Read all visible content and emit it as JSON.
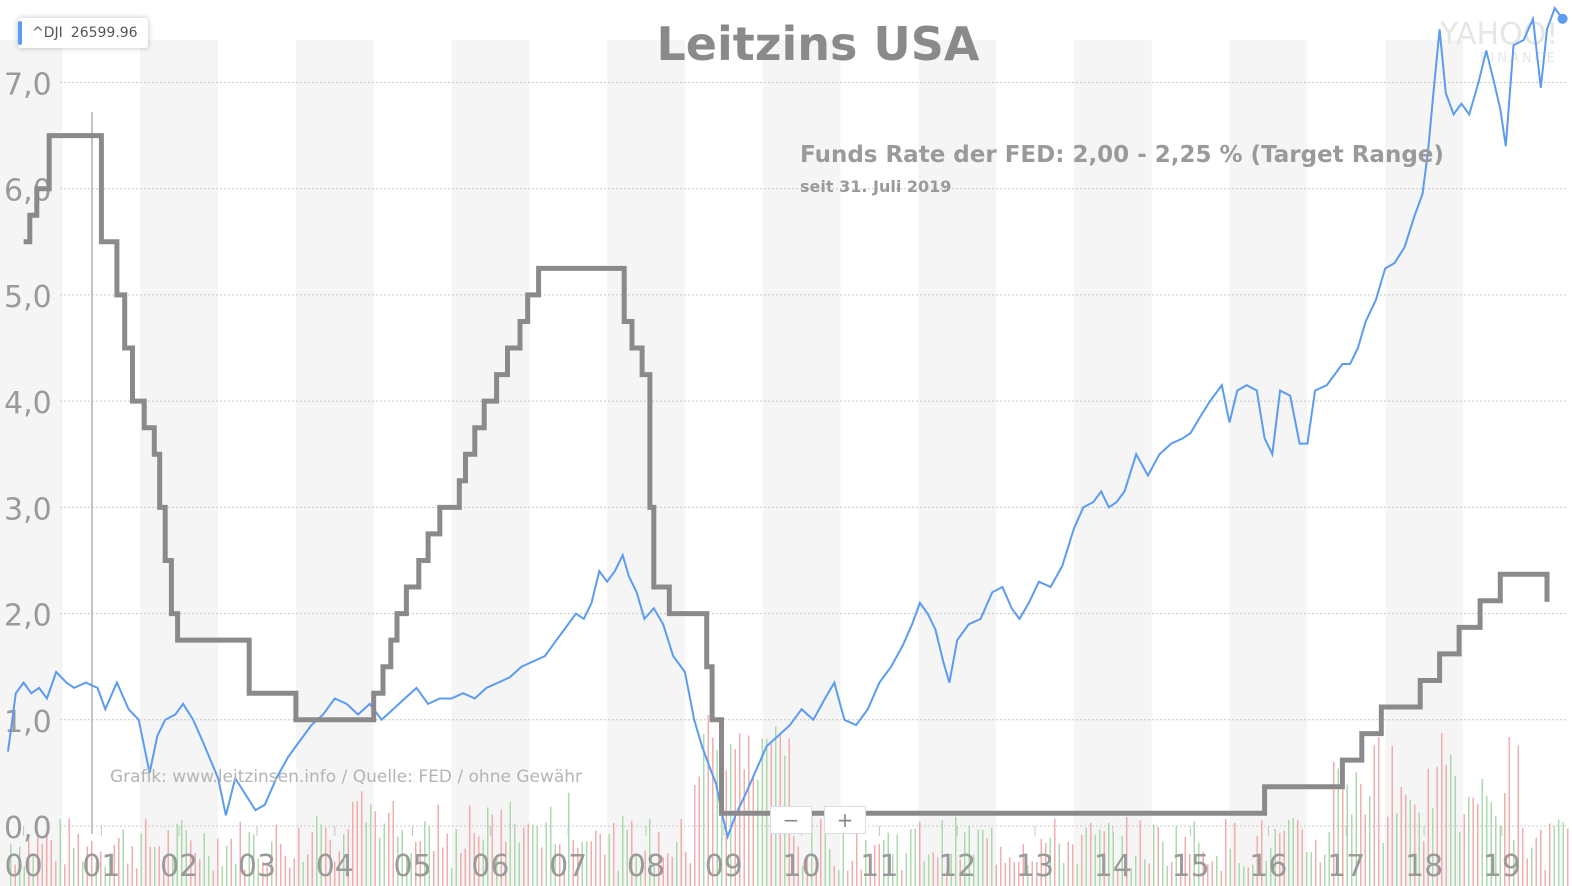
{
  "ticker": {
    "symbol": "^DJI",
    "value": "26599.96"
  },
  "watermark": {
    "brand": "YAHOO!",
    "sub": "FINANCE"
  },
  "zoom": {
    "minus": "−",
    "plus": "+"
  },
  "colors": {
    "fed": "#8a8a8a",
    "dji": "#5b9bf0",
    "volume_up": "#9fd39f",
    "volume_down": "#f0a0a0",
    "grid": "#c8c8c8",
    "band": "#f5f5f5"
  },
  "chart_data": {
    "type": "line",
    "title": "Leitzins USA",
    "annotation": "Funds Rate der FED: 2,00 - 2,25 % (Target Range)",
    "annotation_sub": "seit 31. Juli 2019",
    "source": "Grafik: www.leitzinsen.info / Quelle: FED / ohne Gewähr",
    "x_tick_labels": [
      "00",
      "01",
      "02",
      "03",
      "04",
      "05",
      "06",
      "07",
      "08",
      "09",
      "10",
      "11",
      "12",
      "13",
      "14",
      "15",
      "16",
      "17",
      "18",
      "19"
    ],
    "y_tick_labels": [
      "0,0",
      "1,0",
      "2,0",
      "3,0",
      "4,0",
      "5,0",
      "6,0",
      "7,0"
    ],
    "xlim": [
      1999.8,
      2019.85
    ],
    "ylim": [
      0,
      7.4
    ],
    "grid": true,
    "series": [
      {
        "kind": "step",
        "points": [
          [
            2000.0,
            5.5
          ],
          [
            2000.08,
            5.75
          ],
          [
            2000.17,
            6.0
          ],
          [
            2000.33,
            6.5
          ],
          [
            2001.0,
            5.5
          ],
          [
            2001.2,
            5.0
          ],
          [
            2001.3,
            4.5
          ],
          [
            2001.4,
            4.0
          ],
          [
            2001.55,
            3.75
          ],
          [
            2001.68,
            3.5
          ],
          [
            2001.75,
            3.0
          ],
          [
            2001.82,
            2.5
          ],
          [
            2001.9,
            2.0
          ],
          [
            2001.98,
            1.75
          ],
          [
            2002.9,
            1.25
          ],
          [
            2003.5,
            1.0
          ],
          [
            2004.5,
            1.25
          ],
          [
            2004.62,
            1.5
          ],
          [
            2004.72,
            1.75
          ],
          [
            2004.8,
            2.0
          ],
          [
            2004.92,
            2.25
          ],
          [
            2005.08,
            2.5
          ],
          [
            2005.2,
            2.75
          ],
          [
            2005.35,
            3.0
          ],
          [
            2005.6,
            3.25
          ],
          [
            2005.68,
            3.5
          ],
          [
            2005.8,
            3.75
          ],
          [
            2005.92,
            4.0
          ],
          [
            2006.08,
            4.25
          ],
          [
            2006.22,
            4.5
          ],
          [
            2006.38,
            4.75
          ],
          [
            2006.48,
            5.0
          ],
          [
            2006.62,
            5.25
          ],
          [
            2007.72,
            4.75
          ],
          [
            2007.82,
            4.5
          ],
          [
            2007.95,
            4.25
          ],
          [
            2008.05,
            3.0
          ],
          [
            2008.1,
            2.25
          ],
          [
            2008.3,
            2.0
          ],
          [
            2008.78,
            1.5
          ],
          [
            2008.85,
            1.0
          ],
          [
            2008.97,
            0.12
          ],
          [
            2015.95,
            0.37
          ],
          [
            2016.95,
            0.62
          ],
          [
            2017.2,
            0.87
          ],
          [
            2017.45,
            1.12
          ],
          [
            2017.95,
            1.37
          ],
          [
            2018.2,
            1.62
          ],
          [
            2018.45,
            1.87
          ],
          [
            2018.72,
            2.12
          ],
          [
            2018.98,
            2.37
          ],
          [
            2019.58,
            2.12
          ]
        ]
      },
      {
        "kind": "line",
        "points": [
          [
            1999.8,
            0.7
          ],
          [
            1999.9,
            1.25
          ],
          [
            2000.0,
            1.35
          ],
          [
            2000.1,
            1.25
          ],
          [
            2000.2,
            1.3
          ],
          [
            2000.3,
            1.2
          ],
          [
            2000.42,
            1.45
          ],
          [
            2000.55,
            1.35
          ],
          [
            2000.65,
            1.3
          ],
          [
            2000.8,
            1.35
          ],
          [
            2000.95,
            1.3
          ],
          [
            2001.05,
            1.1
          ],
          [
            2001.2,
            1.35
          ],
          [
            2001.35,
            1.1
          ],
          [
            2001.48,
            1.0
          ],
          [
            2001.62,
            0.5
          ],
          [
            2001.72,
            0.85
          ],
          [
            2001.82,
            1.0
          ],
          [
            2001.95,
            1.05
          ],
          [
            2002.05,
            1.15
          ],
          [
            2002.18,
            1.0
          ],
          [
            2002.3,
            0.8
          ],
          [
            2002.5,
            0.45
          ],
          [
            2002.6,
            0.1
          ],
          [
            2002.72,
            0.45
          ],
          [
            2002.85,
            0.3
          ],
          [
            2002.98,
            0.15
          ],
          [
            2003.1,
            0.2
          ],
          [
            2003.25,
            0.45
          ],
          [
            2003.4,
            0.65
          ],
          [
            2003.55,
            0.8
          ],
          [
            2003.7,
            0.95
          ],
          [
            2003.85,
            1.05
          ],
          [
            2004.0,
            1.2
          ],
          [
            2004.15,
            1.15
          ],
          [
            2004.3,
            1.05
          ],
          [
            2004.45,
            1.15
          ],
          [
            2004.6,
            1.0
          ],
          [
            2004.75,
            1.1
          ],
          [
            2004.9,
            1.2
          ],
          [
            2005.05,
            1.3
          ],
          [
            2005.2,
            1.15
          ],
          [
            2005.35,
            1.2
          ],
          [
            2005.5,
            1.2
          ],
          [
            2005.65,
            1.25
          ],
          [
            2005.8,
            1.2
          ],
          [
            2005.95,
            1.3
          ],
          [
            2006.1,
            1.35
          ],
          [
            2006.25,
            1.4
          ],
          [
            2006.4,
            1.5
          ],
          [
            2006.55,
            1.55
          ],
          [
            2006.7,
            1.6
          ],
          [
            2006.85,
            1.75
          ],
          [
            2007.0,
            1.9
          ],
          [
            2007.1,
            2.0
          ],
          [
            2007.2,
            1.95
          ],
          [
            2007.3,
            2.1
          ],
          [
            2007.4,
            2.4
          ],
          [
            2007.5,
            2.3
          ],
          [
            2007.6,
            2.4
          ],
          [
            2007.7,
            2.55
          ],
          [
            2007.78,
            2.35
          ],
          [
            2007.88,
            2.2
          ],
          [
            2007.98,
            1.95
          ],
          [
            2008.1,
            2.05
          ],
          [
            2008.22,
            1.9
          ],
          [
            2008.35,
            1.6
          ],
          [
            2008.5,
            1.45
          ],
          [
            2008.62,
            1.0
          ],
          [
            2008.72,
            0.75
          ],
          [
            2008.82,
            0.55
          ],
          [
            2008.9,
            0.4
          ],
          [
            2008.98,
            0.1
          ],
          [
            2009.05,
            -0.1
          ],
          [
            2009.15,
            0.1
          ],
          [
            2009.28,
            0.3
          ],
          [
            2009.4,
            0.5
          ],
          [
            2009.55,
            0.75
          ],
          [
            2009.7,
            0.85
          ],
          [
            2009.85,
            0.95
          ],
          [
            2010.0,
            1.1
          ],
          [
            2010.15,
            1.0
          ],
          [
            2010.3,
            1.2
          ],
          [
            2010.42,
            1.35
          ],
          [
            2010.55,
            1.0
          ],
          [
            2010.7,
            0.95
          ],
          [
            2010.85,
            1.1
          ],
          [
            2011.0,
            1.35
          ],
          [
            2011.15,
            1.5
          ],
          [
            2011.3,
            1.7
          ],
          [
            2011.42,
            1.9
          ],
          [
            2011.52,
            2.1
          ],
          [
            2011.62,
            2.0
          ],
          [
            2011.72,
            1.85
          ],
          [
            2011.82,
            1.55
          ],
          [
            2011.9,
            1.35
          ],
          [
            2012.0,
            1.75
          ],
          [
            2012.15,
            1.9
          ],
          [
            2012.3,
            1.95
          ],
          [
            2012.45,
            2.2
          ],
          [
            2012.58,
            2.25
          ],
          [
            2012.7,
            2.05
          ],
          [
            2012.8,
            1.95
          ],
          [
            2012.92,
            2.1
          ],
          [
            2013.05,
            2.3
          ],
          [
            2013.2,
            2.25
          ],
          [
            2013.35,
            2.45
          ],
          [
            2013.5,
            2.8
          ],
          [
            2013.62,
            3.0
          ],
          [
            2013.75,
            3.05
          ],
          [
            2013.85,
            3.15
          ],
          [
            2013.95,
            3.0
          ],
          [
            2014.05,
            3.05
          ],
          [
            2014.15,
            3.15
          ],
          [
            2014.3,
            3.5
          ],
          [
            2014.45,
            3.3
          ],
          [
            2014.6,
            3.5
          ],
          [
            2014.75,
            3.6
          ],
          [
            2014.9,
            3.65
          ],
          [
            2015.0,
            3.7
          ],
          [
            2015.12,
            3.85
          ],
          [
            2015.25,
            4.0
          ],
          [
            2015.4,
            4.15
          ],
          [
            2015.5,
            3.8
          ],
          [
            2015.6,
            4.1
          ],
          [
            2015.72,
            4.15
          ],
          [
            2015.85,
            4.1
          ],
          [
            2015.95,
            3.65
          ],
          [
            2016.05,
            3.5
          ],
          [
            2016.15,
            4.1
          ],
          [
            2016.28,
            4.05
          ],
          [
            2016.4,
            3.6
          ],
          [
            2016.5,
            3.6
          ],
          [
            2016.6,
            4.1
          ],
          [
            2016.75,
            4.15
          ],
          [
            2016.85,
            4.25
          ],
          [
            2016.95,
            4.35
          ],
          [
            2017.05,
            4.35
          ],
          [
            2017.15,
            4.5
          ],
          [
            2017.25,
            4.75
          ],
          [
            2017.38,
            4.95
          ],
          [
            2017.5,
            5.25
          ],
          [
            2017.62,
            5.3
          ],
          [
            2017.75,
            5.45
          ],
          [
            2017.88,
            5.75
          ],
          [
            2017.98,
            5.95
          ],
          [
            2018.05,
            6.35
          ],
          [
            2018.12,
            6.9
          ],
          [
            2018.2,
            7.5
          ],
          [
            2018.28,
            6.9
          ],
          [
            2018.38,
            6.7
          ],
          [
            2018.48,
            6.8
          ],
          [
            2018.58,
            6.7
          ],
          [
            2018.7,
            7.0
          ],
          [
            2018.8,
            7.3
          ],
          [
            2018.9,
            7.0
          ],
          [
            2018.98,
            6.75
          ],
          [
            2019.05,
            6.4
          ],
          [
            2019.15,
            7.35
          ],
          [
            2019.28,
            7.4
          ],
          [
            2019.4,
            7.6
          ],
          [
            2019.5,
            6.95
          ],
          [
            2019.58,
            7.5
          ],
          [
            2019.68,
            7.7
          ],
          [
            2019.78,
            7.6
          ]
        ]
      }
    ]
  }
}
